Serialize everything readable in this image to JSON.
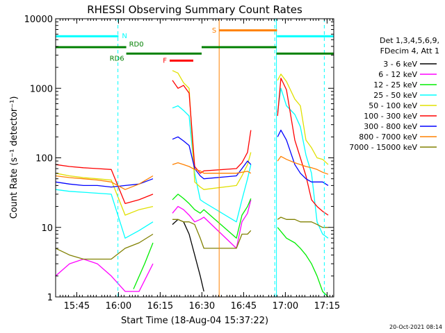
{
  "chart_data": {
    "type": "line",
    "title": "RHESSI Observing Summary Count Rates",
    "xlabel": "Start Time (18-Aug-04 15:37:22)",
    "ylabel": "Count Rate (s⁻¹ detector⁻¹)",
    "x_unit": "minutes after 15:37:22 UT",
    "xlim": [
      0,
      100
    ],
    "ylim": [
      1,
      10000
    ],
    "yscale": "log",
    "x_ticks": [
      {
        "label": "15:45",
        "value": 7.6
      },
      {
        "label": "16:00",
        "value": 22.6
      },
      {
        "label": "16:15",
        "value": 37.6
      },
      {
        "label": "16:30",
        "value": 52.6
      },
      {
        "label": "16:45",
        "value": 67.6
      },
      {
        "label": "17:00",
        "value": 82.6
      },
      {
        "label": "17:15",
        "value": 97.6
      }
    ],
    "y_ticks": [
      {
        "label": "1",
        "value": 1
      },
      {
        "label": "10",
        "value": 10
      },
      {
        "label": "100",
        "value": 100
      },
      {
        "label": "1000",
        "value": 1000
      },
      {
        "label": "10000",
        "value": 10000
      }
    ],
    "legend_title": [
      "Det 1,3,4,5,6,9,",
      "FDecim 4, Att 1"
    ],
    "legend_position": "right",
    "data_gaps": [
      [
        36.1,
        41.4
      ],
      [
        70.4,
        79.2
      ]
    ],
    "series": [
      {
        "name": "3 - 6 keV",
        "color": "#000000",
        "x": [
          38,
          40,
          42,
          44,
          46,
          48,
          50,
          52,
          53.3
        ],
        "y": [
          4,
          8,
          11,
          13,
          12,
          8,
          4,
          2,
          1.2
        ]
      },
      {
        "name": "6 - 12 keV",
        "color": "#ff00ff",
        "x": [
          0,
          5,
          10,
          15,
          20,
          25,
          30,
          35,
          38,
          40,
          42,
          44,
          46,
          48,
          50,
          52,
          53.3,
          65,
          67,
          69,
          70.2
        ],
        "y": [
          2,
          3,
          3.5,
          3,
          2,
          1.2,
          1.2,
          3,
          8,
          12,
          16,
          20,
          18,
          15,
          12,
          13,
          14,
          5,
          12,
          16,
          25
        ]
      },
      {
        "name": "12 - 25 keV",
        "color": "#00ee00",
        "x": [
          28,
          32,
          35,
          38,
          40,
          42,
          44,
          46,
          48,
          50,
          52,
          53.3,
          65,
          67,
          69,
          70.2,
          79.8,
          83,
          86,
          88,
          90,
          92,
          94,
          96,
          98
        ],
        "y": [
          1.3,
          3,
          6,
          14,
          20,
          25,
          30,
          26,
          22,
          18,
          16,
          18,
          7,
          15,
          20,
          26,
          10,
          7,
          6,
          5,
          4,
          3,
          2,
          1.2,
          1
        ]
      },
      {
        "name": "25 - 50 keV",
        "color": "#00ffff",
        "x": [
          0,
          5,
          10,
          15,
          20,
          25,
          30,
          35,
          38,
          40,
          42,
          44,
          46,
          48,
          50,
          52,
          53.3,
          65,
          67,
          69,
          70.2,
          79.8,
          81,
          83,
          86,
          88,
          90,
          92,
          94,
          96,
          98
        ],
        "y": [
          35,
          33,
          32,
          31,
          30,
          7,
          9,
          12,
          20,
          350,
          520,
          560,
          480,
          400,
          60,
          25,
          23,
          12,
          25,
          50,
          80,
          450,
          1000,
          560,
          420,
          280,
          110,
          60,
          12,
          8,
          7
        ]
      },
      {
        "name": "50 - 100 keV",
        "color": "#e0e000",
        "x": [
          0,
          5,
          10,
          15,
          20,
          25,
          30,
          35,
          38,
          40,
          42,
          44,
          46,
          48,
          50,
          52,
          53.3,
          65,
          67,
          69,
          70.2,
          79.8,
          81,
          83,
          86,
          88,
          90,
          92,
          94,
          96,
          98
        ],
        "y": [
          60,
          55,
          52,
          50,
          48,
          15,
          18,
          20,
          35,
          1650,
          1800,
          1650,
          1200,
          1000,
          45,
          38,
          35,
          40,
          55,
          80,
          120,
          1300,
          1600,
          1250,
          700,
          560,
          180,
          140,
          100,
          95,
          80
        ]
      },
      {
        "name": "100 - 300 keV",
        "color": "#ff0000",
        "x": [
          0,
          5,
          10,
          15,
          20,
          25,
          30,
          35,
          38,
          40,
          42,
          44,
          46,
          48,
          50,
          52,
          53.3,
          65,
          67,
          69,
          70.2,
          79.8,
          81,
          83,
          86,
          88,
          90,
          92,
          94,
          96,
          98
        ],
        "y": [
          80,
          75,
          72,
          70,
          68,
          22,
          25,
          30,
          50,
          1400,
          1300,
          1000,
          1100,
          850,
          75,
          60,
          65,
          70,
          85,
          120,
          250,
          400,
          1400,
          950,
          180,
          100,
          55,
          25,
          20,
          17,
          15
        ]
      },
      {
        "name": "300 - 800 keV",
        "color": "#0000ff",
        "x": [
          0,
          5,
          10,
          15,
          20,
          25,
          30,
          35,
          38,
          40,
          42,
          44,
          46,
          48,
          50,
          52,
          53.3,
          65,
          67,
          69,
          70.2,
          79.8,
          81,
          83,
          86,
          88,
          90,
          92,
          94,
          96,
          98
        ],
        "y": [
          45,
          42,
          40,
          40,
          38,
          40,
          42,
          50,
          80,
          150,
          185,
          200,
          175,
          150,
          70,
          55,
          50,
          55,
          70,
          90,
          80,
          200,
          250,
          180,
          80,
          60,
          50,
          45,
          45,
          45,
          40
        ]
      },
      {
        "name": "800 - 7000 keV",
        "color": "#ff8000",
        "x": [
          0,
          5,
          10,
          15,
          20,
          25,
          30,
          35,
          38,
          40,
          42,
          44,
          46,
          48,
          50,
          52,
          53.3,
          65,
          67,
          69,
          70.2,
          79.8,
          81,
          83,
          86,
          88,
          90,
          92,
          94,
          96,
          98
        ],
        "y": [
          55,
          52,
          50,
          48,
          45,
          35,
          42,
          55,
          65,
          75,
          80,
          85,
          80,
          75,
          68,
          65,
          60,
          60,
          62,
          64,
          60,
          90,
          105,
          95,
          85,
          80,
          75,
          72,
          68,
          62,
          58
        ]
      },
      {
        "name": "7000 - 15000 keV",
        "color": "#808000",
        "x": [
          0,
          5,
          10,
          15,
          20,
          25,
          30,
          35,
          38,
          40,
          42,
          44,
          46,
          48,
          50,
          52,
          53.3,
          65,
          67,
          69,
          70.2,
          79.8,
          81,
          83,
          86,
          88,
          90,
          92,
          94,
          96,
          98
        ],
        "y": [
          5,
          4,
          3.5,
          3.5,
          3.5,
          5,
          6,
          8,
          10,
          12,
          13,
          13,
          12,
          12,
          11,
          7,
          5,
          5,
          8,
          8,
          9,
          13,
          14,
          13,
          13,
          12,
          12,
          12,
          11,
          10,
          10
        ]
      }
    ],
    "state_bars": [
      {
        "label": "N",
        "color": "#00ffff",
        "y": 5600,
        "segments": [
          [
            0,
            22.6
          ],
          [
            79.6,
            100
          ]
        ]
      },
      {
        "label": "F",
        "color": "#ff0000",
        "y": 2500,
        "segments": [
          [
            41,
            49.5
          ]
        ]
      },
      {
        "label": "S",
        "color": "#ff8000",
        "y": 6800,
        "segments": [
          [
            58.8,
            79.6
          ]
        ]
      },
      {
        "label": "RD0",
        "color": "#008000",
        "y": 3900,
        "segments": [
          [
            0,
            25.4
          ],
          [
            52.5,
            79.4
          ]
        ]
      },
      {
        "label": "RD6",
        "color": "#008000",
        "y": 3150,
        "segments": [
          [
            25.4,
            52.5
          ],
          [
            79.4,
            100
          ]
        ]
      }
    ],
    "vertical_markers": [
      {
        "kind": "eclipse",
        "color": "#00ffff",
        "style": "dashed",
        "x": 22.4
      },
      {
        "kind": "eclipse",
        "color": "#00ffff",
        "style": "dashed",
        "x": 78.8
      },
      {
        "kind": "eclipse",
        "color": "#00ffff",
        "style": "dashed",
        "x": 96.6
      },
      {
        "kind": "eclipse",
        "color": "#00ffff",
        "style": "solid",
        "x": 0
      },
      {
        "kind": "eclipse",
        "color": "#00ffff",
        "style": "solid",
        "x": 79.4
      },
      {
        "kind": "saa",
        "color": "#ff8000",
        "style": "solid",
        "x": 58.8
      }
    ]
  },
  "footer": {
    "timestamp": "20-Oct-2021 08:14"
  }
}
